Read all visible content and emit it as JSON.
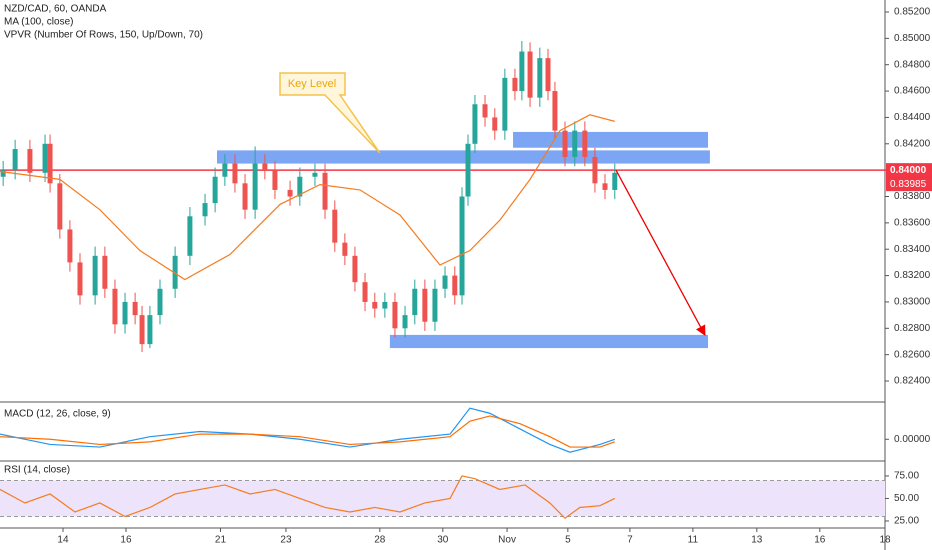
{
  "chart_data": [
    {
      "type": "candlestick",
      "title": "NZD/CAD, 60, OANDA",
      "indicators": [
        "MA (100, close)",
        "VPVR (Number Of Rows, 150, Up/Down, 70)"
      ],
      "up_color": "#26a69a",
      "down_color": "#ef5350",
      "x": [
        0.1,
        0.48,
        0.95,
        1.43,
        1.59,
        1.9,
        2.22,
        2.54,
        3.02,
        3.33,
        3.65,
        3.97,
        4.29,
        4.51,
        4.76,
        5.08,
        5.56,
        6.03,
        6.51,
        6.83,
        7.14,
        7.46,
        7.78,
        8.1,
        8.41,
        8.73,
        9.21,
        9.52,
        10,
        10.32,
        10.63,
        10.95,
        11.27,
        11.59,
        11.9,
        12.22,
        12.54,
        12.86,
        13.17,
        13.49,
        13.81,
        14.13,
        14.44,
        14.67,
        14.86,
        15.08,
        15.4,
        15.71,
        16.03,
        16.35,
        16.57,
        16.83,
        17.14,
        17.4,
        17.62,
        17.94,
        18.25,
        18.57,
        18.89,
        19.21,
        19.52
      ],
      "open": [
        0.8395,
        0.84,
        0.8416,
        0.8398,
        0.842,
        0.839,
        0.8355,
        0.833,
        0.8305,
        0.8335,
        0.831,
        0.8283,
        0.83,
        0.829,
        0.8268,
        0.829,
        0.831,
        0.8335,
        0.8365,
        0.8375,
        0.8395,
        0.8405,
        0.839,
        0.837,
        0.8405,
        0.84,
        0.8385,
        0.838,
        0.8395,
        0.8398,
        0.837,
        0.8345,
        0.8335,
        0.8315,
        0.83,
        0.8295,
        0.83,
        0.828,
        0.829,
        0.831,
        0.8285,
        0.831,
        0.832,
        0.8305,
        0.838,
        0.842,
        0.845,
        0.844,
        0.843,
        0.847,
        0.846,
        0.849,
        0.8455,
        0.8485,
        0.846,
        0.843,
        0.841,
        0.843,
        0.841,
        0.839,
        0.8385
      ],
      "high": [
        0.8407,
        0.8423,
        0.8423,
        0.8427,
        0.8427,
        0.8397,
        0.8362,
        0.8337,
        0.8342,
        0.8342,
        0.8317,
        0.8307,
        0.8307,
        0.8297,
        0.8297,
        0.8317,
        0.8342,
        0.8372,
        0.8382,
        0.8402,
        0.8412,
        0.8412,
        0.8397,
        0.8418,
        0.8412,
        0.8407,
        0.8392,
        0.8402,
        0.8405,
        0.8405,
        0.8377,
        0.8352,
        0.8342,
        0.8322,
        0.8307,
        0.8307,
        0.8307,
        0.8297,
        0.8317,
        0.8317,
        0.8317,
        0.8327,
        0.8327,
        0.8387,
        0.8427,
        0.8457,
        0.8457,
        0.8447,
        0.8477,
        0.8477,
        0.8498,
        0.8497,
        0.8493,
        0.8492,
        0.8467,
        0.8437,
        0.8437,
        0.8437,
        0.8417,
        0.8397,
        0.8405
      ],
      "low": [
        0.8388,
        0.8393,
        0.8391,
        0.8391,
        0.8383,
        0.8348,
        0.8323,
        0.8298,
        0.8298,
        0.8303,
        0.8276,
        0.8276,
        0.8283,
        0.8262,
        0.8265,
        0.8283,
        0.8303,
        0.8328,
        0.8358,
        0.8368,
        0.8388,
        0.8383,
        0.8363,
        0.8363,
        0.8393,
        0.8378,
        0.8373,
        0.8373,
        0.8388,
        0.8363,
        0.8338,
        0.8328,
        0.8308,
        0.8293,
        0.8288,
        0.8288,
        0.8273,
        0.8273,
        0.8283,
        0.8278,
        0.8278,
        0.8303,
        0.8298,
        0.8298,
        0.8373,
        0.8413,
        0.8433,
        0.8423,
        0.8423,
        0.8453,
        0.8453,
        0.8448,
        0.8448,
        0.8453,
        0.8423,
        0.8403,
        0.8403,
        0.8403,
        0.8383,
        0.8378,
        0.8378
      ],
      "close": [
        0.84,
        0.8416,
        0.8398,
        0.842,
        0.839,
        0.8355,
        0.833,
        0.8305,
        0.8335,
        0.831,
        0.8283,
        0.83,
        0.829,
        0.8268,
        0.829,
        0.831,
        0.8335,
        0.8365,
        0.8375,
        0.8395,
        0.8405,
        0.839,
        0.837,
        0.8405,
        0.84,
        0.8385,
        0.838,
        0.8395,
        0.8398,
        0.837,
        0.8345,
        0.8335,
        0.8315,
        0.83,
        0.8295,
        0.83,
        0.828,
        0.829,
        0.831,
        0.8285,
        0.831,
        0.832,
        0.8305,
        0.838,
        0.842,
        0.845,
        0.844,
        0.843,
        0.847,
        0.846,
        0.849,
        0.8455,
        0.8485,
        0.846,
        0.843,
        0.841,
        0.843,
        0.841,
        0.839,
        0.8385,
        0.8398
      ],
      "ma": {
        "color": "#f57c20",
        "x": [
          0,
          1.9,
          3.17,
          4.44,
          5.87,
          7.3,
          8.89,
          10.16,
          11.43,
          12.7,
          13.97,
          14.92,
          15.87,
          16.83,
          17.78,
          18.73,
          19.52
        ],
        "values": [
          0.8399,
          0.8393,
          0.837,
          0.8339,
          0.8317,
          0.8336,
          0.8374,
          0.8389,
          0.8385,
          0.8366,
          0.8328,
          0.8339,
          0.8362,
          0.8393,
          0.843,
          0.8442,
          0.8437
        ]
      },
      "xlim": [
        0,
        28.1
      ],
      "ylim": [
        0.82256,
        0.85291
      ],
      "yticks": [
        {
          "value": 0.852,
          "label": "0.85200"
        },
        {
          "value": 0.85,
          "label": "0.85000"
        },
        {
          "value": 0.848,
          "label": "0.84800"
        },
        {
          "value": 0.846,
          "label": "0.84600"
        },
        {
          "value": 0.844,
          "label": "0.84400"
        },
        {
          "value": 0.842,
          "label": "0.84200"
        },
        {
          "value": 0.84,
          "label": "0.84000"
        },
        {
          "value": 0.838,
          "label": "0.83800"
        },
        {
          "value": 0.836,
          "label": "0.83600"
        },
        {
          "value": 0.834,
          "label": "0.83400"
        },
        {
          "value": 0.832,
          "label": "0.83200"
        },
        {
          "value": 0.83,
          "label": "0.83000"
        },
        {
          "value": 0.828,
          "label": "0.82800"
        },
        {
          "value": 0.826,
          "label": "0.82600"
        },
        {
          "value": 0.824,
          "label": "0.82400"
        }
      ],
      "xticks": [
        {
          "value": 2,
          "label": "14"
        },
        {
          "value": 4,
          "label": "16"
        },
        {
          "value": 7,
          "label": "21"
        },
        {
          "value": 9.08,
          "label": "23"
        },
        {
          "value": 12.06,
          "label": "28"
        },
        {
          "value": 14.06,
          "label": "30"
        },
        {
          "value": 16.1,
          "label": "Nov"
        },
        {
          "value": 18.03,
          "label": "5"
        },
        {
          "value": 20,
          "label": "7"
        },
        {
          "value": 22,
          "label": "11"
        },
        {
          "value": 24.03,
          "label": "13"
        },
        {
          "value": 26.03,
          "label": "16"
        },
        {
          "value": 28.1,
          "label": "18"
        }
      ],
      "zones": [
        {
          "x": [
            6.89,
            22.54
          ],
          "y": [
            0.8405,
            0.8415
          ]
        },
        {
          "x": [
            16.29,
            22.48
          ],
          "y": [
            0.8417,
            0.8429
          ]
        },
        {
          "x": [
            12.38,
            22.48
          ],
          "y": [
            0.8265,
            0.8275
          ]
        }
      ],
      "level": {
        "value": 0.84,
        "label": "0.84000",
        "color": "#f23645"
      },
      "countdown": "46:10",
      "last_price": {
        "value": 0.83985,
        "label": "0.83985"
      },
      "arrow": {
        "x": [
          19.56,
          22.38
        ],
        "y": [
          0.84,
          0.8275
        ]
      },
      "annotation": {
        "text": "Key Level",
        "x": 12.06,
        "y": 0.8413
      }
    },
    {
      "type": "line",
      "title": "MACD (12, 26, close, 9)",
      "ylim": [
        -0.0008,
        0.0014
      ],
      "yticks": [
        {
          "value": 0,
          "label": "0.00000"
        }
      ],
      "x": [
        0,
        1.59,
        3.17,
        4.76,
        6.35,
        7.94,
        9.52,
        11.11,
        12.7,
        14.29,
        14.92,
        15.56,
        16.51,
        17.46,
        18.1,
        19.05,
        19.52
      ],
      "series": [
        {
          "color": "#2196f3",
          "values": [
            0.0002,
            -0.0002,
            -0.0003,
            0.0001,
            0.0003,
            0.0002,
            0,
            -0.0003,
            0,
            0.0002,
            0.0012,
            0.001,
            0.0004,
            -0.0002,
            -0.0005,
            -0.0002,
            0
          ]
        },
        {
          "color": "#ff6d00",
          "values": [
            0.0001,
            0,
            -0.0002,
            -0.0001,
            0.0002,
            0.0002,
            0.0001,
            -0.0002,
            -0.0001,
            0.0001,
            0.0007,
            0.0009,
            0.0006,
            0.0001,
            -0.0003,
            -0.0003,
            -0.0001
          ]
        }
      ]
    },
    {
      "type": "line",
      "title": "RSI (14, close)",
      "ylim": [
        18.3,
        89.4
      ],
      "band": [
        30,
        70
      ],
      "band_color": "#ede3fa",
      "yticks": [
        {
          "value": 75,
          "label": "75.00"
        },
        {
          "value": 50,
          "label": "50.00"
        },
        {
          "value": 25,
          "label": "25.00"
        }
      ],
      "x": [
        0,
        0.79,
        1.59,
        2.38,
        3.17,
        3.97,
        4.76,
        5.56,
        6.35,
        7.14,
        7.94,
        8.73,
        9.52,
        10.32,
        11.11,
        11.9,
        12.7,
        13.49,
        14.29,
        14.67,
        15.08,
        15.87,
        16.67,
        17.46,
        17.94,
        18.41,
        19.05,
        19.52
      ],
      "series": [
        {
          "color": "#f57c20",
          "values": [
            60,
            45,
            55,
            35,
            45,
            30,
            40,
            55,
            60,
            65,
            55,
            60,
            50,
            40,
            35,
            40,
            35,
            45,
            50,
            75,
            72,
            60,
            65,
            45,
            28,
            40,
            42,
            50
          ]
        }
      ]
    }
  ]
}
